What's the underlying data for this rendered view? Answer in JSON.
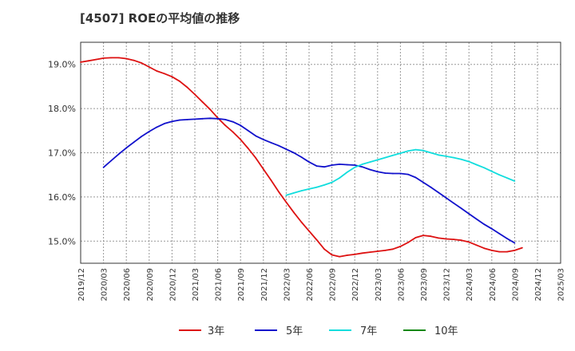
{
  "chart_data": {
    "type": "line",
    "title": "[4507]  ROEの平均値の推移",
    "xlabel": "",
    "ylabel": "",
    "ylim": [
      14.5,
      19.5
    ],
    "yticks": [
      15.0,
      16.0,
      17.0,
      18.0,
      19.0
    ],
    "ytick_labels": [
      "15.0%",
      "16.0%",
      "17.0%",
      "18.0%",
      "19.0%"
    ],
    "x_labels": [
      "2019/12",
      "2020/03",
      "2020/06",
      "2020/09",
      "2020/12",
      "2021/03",
      "2021/06",
      "2021/09",
      "2021/12",
      "2022/03",
      "2022/06",
      "2022/09",
      "2022/12",
      "2023/03",
      "2023/06",
      "2023/09",
      "2023/12",
      "2024/03",
      "2024/06",
      "2024/09",
      "2024/12",
      "2025/03"
    ],
    "grid": true,
    "legend_position": "bottom",
    "series": [
      {
        "name": "3年",
        "color": "#dd1111",
        "start_index": 0,
        "values": [
          19.05,
          19.08,
          19.11,
          19.14,
          19.15,
          19.15,
          19.13,
          19.09,
          19.03,
          18.94,
          18.85,
          18.79,
          18.72,
          18.62,
          18.48,
          18.32,
          18.15,
          17.98,
          17.79,
          17.62,
          17.47,
          17.3,
          17.1,
          16.88,
          16.63,
          16.38,
          16.12,
          15.88,
          15.65,
          15.43,
          15.23,
          15.03,
          14.82,
          14.69,
          14.65,
          14.68,
          14.7,
          14.73,
          14.75,
          14.77,
          14.79,
          14.82,
          14.88,
          14.97,
          15.08,
          15.13,
          15.11,
          15.07,
          15.05,
          15.04,
          15.02,
          14.98,
          14.91,
          14.84,
          14.79,
          14.76,
          14.76,
          14.79,
          14.85
        ]
      },
      {
        "name": "5年",
        "color": "#1111cc",
        "start_index": 3,
        "values": [
          16.67,
          16.82,
          16.97,
          17.11,
          17.24,
          17.37,
          17.48,
          17.58,
          17.66,
          17.71,
          17.74,
          17.75,
          17.76,
          17.77,
          17.78,
          17.77,
          17.75,
          17.7,
          17.62,
          17.5,
          17.38,
          17.3,
          17.23,
          17.16,
          17.08,
          17.0,
          16.9,
          16.79,
          16.7,
          16.68,
          16.72,
          16.74,
          16.73,
          16.72,
          16.68,
          16.62,
          16.57,
          16.54,
          16.53,
          16.53,
          16.51,
          16.44,
          16.33,
          16.22,
          16.1,
          15.98,
          15.86,
          15.74,
          15.62,
          15.5,
          15.38,
          15.28,
          15.17,
          15.06,
          14.96
        ]
      },
      {
        "name": "7年",
        "color": "#11dddd",
        "start_index": 27,
        "values": [
          16.04,
          16.09,
          16.14,
          16.18,
          16.22,
          16.27,
          16.33,
          16.43,
          16.56,
          16.67,
          16.74,
          16.79,
          16.84,
          16.89,
          16.94,
          16.99,
          17.04,
          17.07,
          17.05,
          17.0,
          16.95,
          16.92,
          16.89,
          16.85,
          16.8,
          16.73,
          16.66,
          16.58,
          16.5,
          16.43,
          16.36
        ]
      },
      {
        "name": "10年",
        "color": "#118811",
        "start_index": 0,
        "values": []
      }
    ]
  }
}
